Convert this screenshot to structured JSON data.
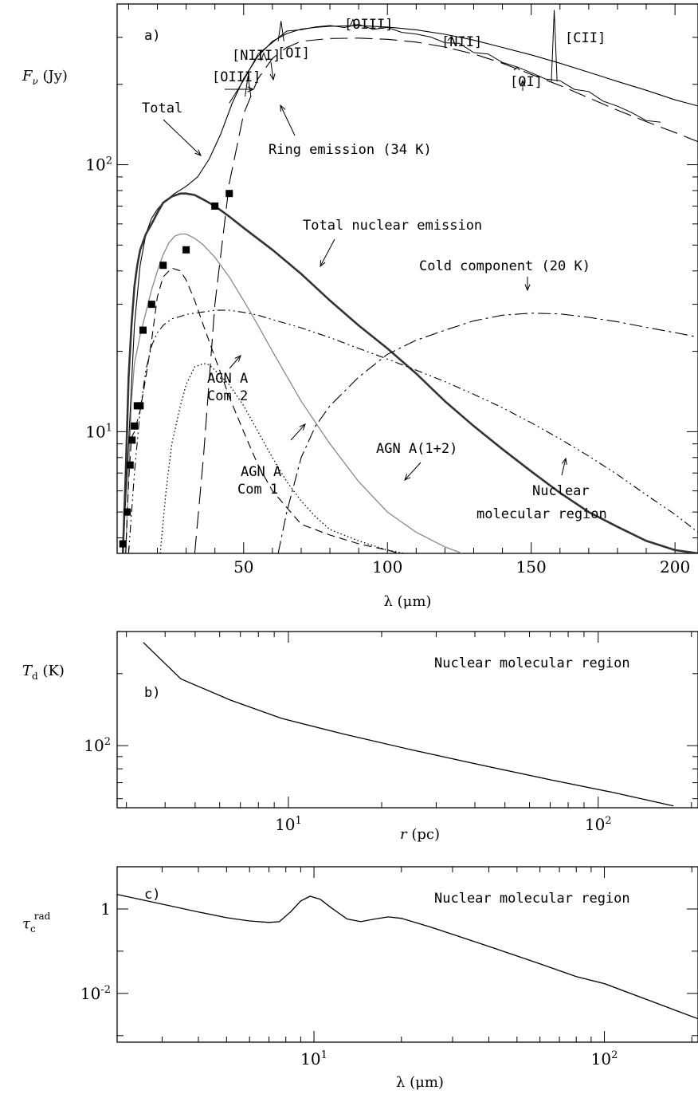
{
  "chart_data": [
    {
      "panel": "a)",
      "type": "line",
      "y_scale": "log",
      "xlim": [
        6,
        208
      ],
      "ylim": [
        3.5,
        400
      ],
      "xlabel": "λ (μm)",
      "ylabel": "Fν (Jy)",
      "x_ticks": [
        "50",
        "100",
        "150",
        "200"
      ],
      "y_ticks": [
        "10^1",
        "10^2"
      ],
      "series": [
        {
          "key": "total",
          "style": "solid-thin",
          "x": [
            8,
            10,
            12,
            14,
            16,
            18,
            20,
            22,
            26,
            30,
            34,
            38,
            42,
            46,
            50,
            55,
            60,
            65,
            70,
            75,
            80,
            90,
            100,
            110,
            120,
            130,
            140,
            150,
            160,
            170,
            180,
            190,
            200,
            208
          ],
          "values": [
            3.5,
            9,
            25,
            42,
            55,
            63,
            68,
            72,
            78,
            83,
            90,
            105,
            130,
            170,
            210,
            255,
            290,
            310,
            322,
            327,
            330,
            332,
            328,
            320,
            308,
            293,
            275,
            258,
            240,
            222,
            205,
            190,
            175,
            166
          ]
        },
        {
          "key": "observed_spectrum",
          "style": "solid-thin-noisy",
          "x": [
            45,
            48,
            50,
            55,
            60,
            65,
            70,
            75,
            80,
            85,
            90,
            95,
            100,
            105,
            110,
            115,
            120,
            125,
            130,
            135,
            140,
            145,
            150,
            155,
            160,
            165,
            170,
            175,
            180,
            185,
            190,
            195
          ],
          "values": [
            170,
            190,
            210,
            255,
            292,
            312,
            323,
            328,
            330,
            331,
            330,
            327,
            322,
            316,
            308,
            299,
            290,
            280,
            268,
            256,
            244,
            232,
            220,
            212,
            203,
            195,
            185,
            175,
            165,
            156,
            148,
            142
          ]
        },
        {
          "key": "ring",
          "style": "long-dash",
          "x": [
            33,
            36,
            40,
            45,
            50,
            55,
            60,
            65,
            70,
            80,
            90,
            100,
            110,
            120,
            130,
            140,
            150,
            160,
            170,
            180,
            190,
            200,
            208
          ],
          "values": [
            3.5,
            8,
            30,
            85,
            155,
            210,
            250,
            275,
            290,
            297,
            298,
            295,
            288,
            276,
            260,
            240,
            218,
            198,
            178,
            160,
            145,
            132,
            122
          ]
        },
        {
          "key": "total_nuclear",
          "style": "solid-thick",
          "x": [
            8,
            9,
            10,
            11,
            12,
            13,
            14,
            16,
            18,
            20,
            22,
            25,
            28,
            30,
            33,
            36,
            40,
            45,
            50,
            60,
            70,
            80,
            90,
            100,
            110,
            120,
            130,
            140,
            150,
            160,
            170,
            180,
            190,
            200,
            208
          ],
          "values": [
            3.5,
            7,
            16,
            25,
            35,
            42,
            48,
            55,
            60,
            66,
            72,
            76,
            78,
            78,
            77,
            74,
            70,
            64,
            58,
            48,
            39,
            31,
            25,
            20.5,
            16.5,
            13,
            10.5,
            8.6,
            7.1,
            5.9,
            5.0,
            4.4,
            3.9,
            3.6,
            3.5
          ]
        },
        {
          "key": "agn_a_1_2",
          "style": "solid-grey",
          "x": [
            9,
            10,
            11,
            12,
            14,
            16,
            18,
            20,
            22,
            24,
            26,
            28,
            30,
            33,
            36,
            40,
            45,
            50,
            55,
            60,
            70,
            80,
            90,
            100,
            110,
            120,
            126
          ],
          "values": [
            3.5,
            7,
            13,
            18,
            23,
            28,
            34,
            40,
            46,
            51,
            54,
            55,
            55,
            53,
            50,
            45,
            38,
            31,
            25,
            20,
            13,
            9,
            6.5,
            5,
            4.2,
            3.7,
            3.5
          ]
        },
        {
          "key": "agn_a_com1",
          "style": "dash",
          "x": [
            9,
            10,
            11,
            12,
            14,
            16,
            18,
            20,
            22,
            25,
            28,
            30,
            33,
            36,
            40,
            45,
            50,
            55,
            60,
            70,
            80,
            90,
            100,
            104
          ],
          "values": [
            3.5,
            6.5,
            9.5,
            10,
            12,
            16,
            22,
            32,
            38,
            41,
            40,
            37,
            31,
            25,
            19,
            13.5,
            10,
            7.5,
            6,
            4.5,
            4.1,
            3.8,
            3.6,
            3.5
          ]
        },
        {
          "key": "agn_a_com2",
          "style": "dotted",
          "x": [
            21,
            23,
            25,
            28,
            30,
            33,
            36,
            38,
            40,
            45,
            50,
            55,
            60,
            65,
            70,
            75,
            80,
            90,
            100,
            106
          ],
          "values": [
            3.5,
            6,
            9,
            12.5,
            15,
            17.5,
            18,
            17.8,
            17,
            15,
            12.5,
            10,
            8,
            6.5,
            5.5,
            4.8,
            4.3,
            3.9,
            3.6,
            3.5
          ]
        },
        {
          "key": "nuclear_molecular",
          "style": "dash-dot-dot",
          "x": [
            10,
            12,
            14,
            16,
            18,
            20,
            22,
            25,
            28,
            30,
            35,
            40,
            45,
            50,
            55,
            60,
            70,
            80,
            90,
            100,
            110,
            120,
            130,
            140,
            150,
            160,
            170,
            180,
            190,
            200,
            208
          ],
          "values": [
            3.5,
            7,
            12,
            17,
            21,
            23.5,
            25,
            26.5,
            27,
            27.5,
            28,
            28.5,
            28.5,
            28,
            27.3,
            26.3,
            24.5,
            22.5,
            20.5,
            18.7,
            17,
            15.4,
            13.8,
            12.3,
            10.8,
            9.4,
            8.1,
            6.9,
            5.8,
            4.9,
            4.2
          ]
        },
        {
          "key": "cold",
          "style": "dash-dot",
          "x": [
            62,
            65,
            70,
            75,
            80,
            90,
            100,
            110,
            120,
            130,
            140,
            150,
            160,
            170,
            180,
            190,
            200,
            208
          ],
          "values": [
            3.5,
            5,
            8,
            10.5,
            12.5,
            16,
            19.5,
            22,
            24,
            26,
            27.3,
            27.8,
            27.6,
            26.8,
            25.8,
            24.6,
            23.5,
            22.6
          ]
        }
      ],
      "points": {
        "key": "photometry",
        "x": [
          8,
          9.5,
          10.5,
          11.2,
          12,
          13,
          14,
          15,
          18,
          22,
          30,
          40,
          45
        ],
        "values": [
          3.8,
          5.0,
          7.5,
          9.3,
          10.5,
          12.5,
          12.5,
          24,
          30,
          42,
          48,
          70,
          78
        ]
      },
      "labels": {
        "panel": "a)",
        "total": "Total",
        "ring": "Ring emission (34 K)",
        "total_nuclear": "Total nuclear emission",
        "cold": "Cold component (20 K)",
        "agn_com2_l1": "AGN A",
        "agn_com2_l2": "Com 2",
        "agn_com1_l1": "AGN A",
        "agn_com1_l2": "Com 1",
        "agn_a12": "AGN A(1+2)",
        "nmr_l1": "Nuclear",
        "nmr_l2": "molecular region"
      },
      "lines": [
        "[OIII]",
        "[NIII]",
        "[OI]",
        "[OIII]",
        "[NII]",
        "[OI]",
        "[CII]"
      ]
    },
    {
      "panel": "b)",
      "type": "line",
      "x_scale": "log",
      "y_scale": "log",
      "xlim": [
        2.8,
        210
      ],
      "ylim": [
        55,
        300
      ],
      "xlabel": "r (pc)",
      "ylabel": "Td (K)",
      "x_ticks": [
        "10^1",
        "10^2"
      ],
      "y_ticks": [
        "10^2"
      ],
      "series": [
        {
          "key": "td",
          "style": "solid",
          "x": [
            3.4,
            4.5,
            6.5,
            9.5,
            15,
            25,
            40,
            70,
            110,
            175
          ],
          "values": [
            270,
            190,
            155,
            130,
            112,
            96,
            84,
            72,
            64,
            56
          ]
        }
      ],
      "label": "Nuclear molecular region"
    },
    {
      "panel": "c)",
      "type": "line",
      "x_scale": "log",
      "y_scale": "log",
      "xlim": [
        2.1,
        210
      ],
      "ylim": [
        0.0007,
        10
      ],
      "xlabel": "λ (μm)",
      "ylabel": "τc rad",
      "x_ticks": [
        "10^1",
        "10^2"
      ],
      "y_ticks": [
        "1",
        "10^-2"
      ],
      "series": [
        {
          "key": "tau",
          "style": "solid",
          "x": [
            2.1,
            3,
            4,
            5,
            6,
            7,
            7.6,
            8.3,
            9,
            9.7,
            10.5,
            11.5,
            13,
            14.5,
            16,
            18,
            20,
            25,
            30,
            40,
            60,
            80,
            100,
            150,
            210
          ],
          "values": [
            2.2,
            1.3,
            0.85,
            0.62,
            0.52,
            0.48,
            0.5,
            0.85,
            1.55,
            2.0,
            1.7,
            1.05,
            0.58,
            0.5,
            0.57,
            0.65,
            0.6,
            0.38,
            0.25,
            0.13,
            0.05,
            0.025,
            0.017,
            0.006,
            0.0025
          ]
        }
      ],
      "label": "Nuclear molecular region"
    }
  ]
}
